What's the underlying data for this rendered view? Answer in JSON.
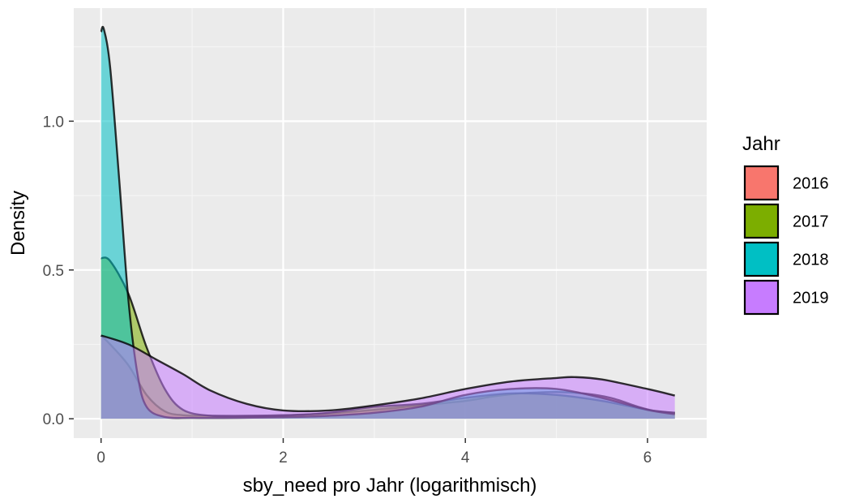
{
  "chart_data": {
    "type": "area",
    "xlabel": "sby_need pro Jahr (logarithmisch)",
    "ylabel": "Density",
    "xlim": [
      -0.3,
      6.65
    ],
    "ylim": [
      -0.065,
      1.38
    ],
    "x_ticks": [
      0,
      2,
      4,
      6
    ],
    "x_tick_labels": [
      "0",
      "2",
      "4",
      "6"
    ],
    "y_ticks": [
      0.0,
      0.5,
      1.0
    ],
    "y_tick_labels": [
      "0.0",
      "0.5",
      "1.0"
    ],
    "grid": true,
    "legend": {
      "title": "Jahr",
      "position": "right"
    },
    "fill_opacity": 0.55,
    "series": [
      {
        "name": "2016",
        "color": "#F8766D",
        "x": [
          0,
          0.1,
          0.3,
          0.5,
          0.7,
          0.9,
          1.2,
          1.6,
          2.0,
          2.5,
          3.0,
          3.5,
          4.0,
          4.3,
          4.6,
          5.0,
          5.3,
          5.6,
          5.9,
          6.1,
          6.3
        ],
        "y": [
          0.28,
          0.25,
          0.18,
          0.08,
          0.025,
          0.012,
          0.01,
          0.01,
          0.012,
          0.018,
          0.03,
          0.045,
          0.06,
          0.075,
          0.085,
          0.09,
          0.085,
          0.07,
          0.04,
          0.025,
          0.02
        ]
      },
      {
        "name": "2017",
        "color": "#7CAE00",
        "x": [
          0,
          0.1,
          0.3,
          0.5,
          0.7,
          0.9,
          1.2,
          1.6,
          2.0,
          2.5,
          3.0,
          3.5,
          4.0,
          4.5,
          5.0,
          5.5,
          6.0,
          6.3
        ],
        "y": [
          0.54,
          0.53,
          0.42,
          0.24,
          0.1,
          0.03,
          0.01,
          0.008,
          0.01,
          0.02,
          0.04,
          0.05,
          0.07,
          0.085,
          0.08,
          0.06,
          0.03,
          0.02
        ]
      },
      {
        "name": "2018",
        "color": "#00BFC4",
        "x": [
          0,
          0.03,
          0.1,
          0.2,
          0.3,
          0.4,
          0.5,
          0.7,
          1.0,
          1.5,
          2.0,
          2.5,
          3.0,
          3.5,
          4.0,
          4.5,
          5.0,
          5.5,
          6.0,
          6.3
        ],
        "y": [
          1.3,
          1.31,
          1.18,
          0.8,
          0.4,
          0.15,
          0.04,
          0.006,
          0.003,
          0.003,
          0.005,
          0.01,
          0.02,
          0.04,
          0.08,
          0.1,
          0.1,
          0.07,
          0.03,
          0.015
        ]
      },
      {
        "name": "2019",
        "color": "#C77CFF",
        "x": [
          0,
          0.3,
          0.6,
          0.9,
          1.2,
          1.6,
          2.0,
          2.5,
          3.0,
          3.5,
          4.0,
          4.5,
          5.0,
          5.2,
          5.5,
          6.0,
          6.3
        ],
        "y": [
          0.28,
          0.25,
          0.2,
          0.15,
          0.095,
          0.05,
          0.028,
          0.028,
          0.045,
          0.068,
          0.1,
          0.125,
          0.137,
          0.14,
          0.132,
          0.1,
          0.078
        ]
      }
    ]
  }
}
